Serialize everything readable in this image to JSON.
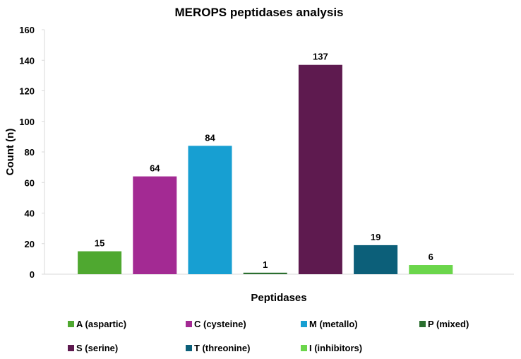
{
  "chart_data": {
    "type": "bar",
    "title": "MEROPS peptidases analysis",
    "xlabel": "Peptidases",
    "ylabel": "Count (n)",
    "ylim": [
      0,
      160
    ],
    "yticks": [
      0,
      20,
      40,
      60,
      80,
      100,
      120,
      140,
      160
    ],
    "grid": false,
    "legend_position": "bottom",
    "categories": [
      "A (aspartic)",
      "C (cysteine)",
      "M (metallo)",
      "P (mixed)",
      "S (serine)",
      "T (threonine)",
      "I (inhibitors)"
    ],
    "values": [
      15,
      64,
      84,
      1,
      137,
      19,
      6
    ],
    "colors": [
      "#4fa830",
      "#a32a93",
      "#179fd2",
      "#2a6e2e",
      "#5e1a4f",
      "#0c5f79",
      "#6bd64b"
    ]
  }
}
